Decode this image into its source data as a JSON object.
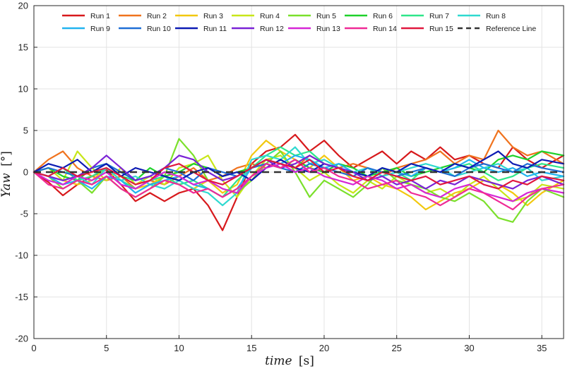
{
  "chart_data": {
    "type": "line",
    "title": "",
    "xlabel_main": "time",
    "xlabel_unit": "[s]",
    "ylabel_main": "Yaw",
    "ylabel_unit": "[°]",
    "xlim": [
      0,
      36.5
    ],
    "ylim": [
      -20,
      20
    ],
    "xticks": [
      0,
      5,
      10,
      15,
      20,
      25,
      30,
      35
    ],
    "yticks": [
      -20,
      -15,
      -10,
      -5,
      0,
      5,
      10,
      15,
      20
    ],
    "grid": true,
    "legend_position": "top",
    "reference_line": {
      "name": "Reference Line",
      "value": 0,
      "color": "#333333"
    },
    "series": [
      {
        "name": "Run 1",
        "color": "#d7191c",
        "x": [
          0,
          1,
          2,
          3,
          4,
          5,
          6,
          7,
          8,
          9,
          10,
          11,
          12,
          13,
          14,
          15,
          16,
          17,
          18,
          19,
          20,
          21,
          22,
          23,
          24,
          25,
          26,
          27,
          28,
          29,
          30,
          31,
          32,
          33,
          34,
          35,
          36.5
        ],
        "values": [
          0,
          -1.2,
          -2.8,
          -1.5,
          -0.5,
          0.3,
          -1.5,
          -3.5,
          -2.5,
          -3.5,
          -2.5,
          -2.0,
          -4.0,
          -7.0,
          -3.0,
          1.0,
          2.5,
          3.0,
          4.5,
          2.5,
          3.8,
          2.0,
          0.5,
          1.5,
          2.5,
          1.0,
          2.5,
          1.5,
          3.0,
          1.5,
          2.0,
          1.0,
          0.5,
          3.0,
          1.5,
          0.5,
          2.0
        ]
      },
      {
        "name": "Run 2",
        "color": "#f0731e",
        "x": [
          0,
          1,
          2,
          3,
          4,
          5,
          6,
          7,
          8,
          9,
          10,
          11,
          12,
          13,
          14,
          15,
          16,
          17,
          18,
          19,
          20,
          21,
          22,
          23,
          24,
          25,
          26,
          27,
          28,
          29,
          30,
          31,
          32,
          33,
          34,
          35,
          36.5
        ],
        "values": [
          0,
          1.5,
          2.5,
          0.5,
          -0.5,
          -1.0,
          -0.5,
          -2.0,
          -1.0,
          -1.5,
          -0.5,
          0.5,
          -1.0,
          -0.5,
          0.5,
          1.0,
          0.5,
          1.5,
          0.5,
          2.0,
          1.0,
          0.5,
          1.0,
          0.5,
          -0.5,
          0.5,
          1.0,
          1.5,
          2.5,
          1.0,
          2.0,
          1.5,
          5.0,
          3.0,
          2.0,
          2.5,
          1.0
        ]
      },
      {
        "name": "Run 3",
        "color": "#f2c80f",
        "x": [
          0,
          1,
          2,
          3,
          4,
          5,
          6,
          7,
          8,
          9,
          10,
          11,
          12,
          13,
          14,
          15,
          16,
          17,
          18,
          19,
          20,
          21,
          22,
          23,
          24,
          25,
          26,
          27,
          28,
          29,
          30,
          31,
          32,
          33,
          34,
          35,
          36.5
        ],
        "values": [
          0,
          -0.5,
          -1.0,
          -1.5,
          -1.0,
          0.5,
          -1.0,
          -2.0,
          -1.5,
          -0.5,
          -1.0,
          -2.0,
          -1.0,
          -2.5,
          -1.5,
          2.0,
          3.8,
          2.5,
          1.5,
          0.5,
          2.0,
          0.5,
          -1.0,
          -0.5,
          -1.5,
          -2.0,
          -3.0,
          -4.5,
          -3.5,
          -2.5,
          -2.0,
          -1.0,
          -1.5,
          -2.5,
          -4.0,
          -2.5,
          -1.0
        ]
      },
      {
        "name": "Run 4",
        "color": "#c8e619",
        "x": [
          0,
          1,
          2,
          3,
          4,
          5,
          6,
          7,
          8,
          9,
          10,
          11,
          12,
          13,
          14,
          15,
          16,
          17,
          18,
          19,
          20,
          21,
          22,
          23,
          24,
          25,
          26,
          27,
          28,
          29,
          30,
          31,
          32,
          33,
          34,
          35,
          36.5
        ],
        "values": [
          0,
          0.5,
          -1.0,
          2.5,
          0.5,
          -1.0,
          0.5,
          -1.5,
          -0.5,
          -1.5,
          0.5,
          1.0,
          2.0,
          -1.0,
          -3.0,
          -0.5,
          1.5,
          2.0,
          0.5,
          -1.0,
          0.0,
          -1.5,
          -2.5,
          -1.0,
          -2.0,
          -0.5,
          -1.5,
          -2.5,
          -2.0,
          -3.0,
          -1.5,
          -0.5,
          -2.0,
          -3.5,
          -3.0,
          -1.5,
          -2.0
        ]
      },
      {
        "name": "Run 5",
        "color": "#7be02b",
        "x": [
          0,
          1,
          2,
          3,
          4,
          5,
          6,
          7,
          8,
          9,
          10,
          11,
          12,
          13,
          14,
          15,
          16,
          17,
          18,
          19,
          20,
          21,
          22,
          23,
          24,
          25,
          26,
          27,
          28,
          29,
          30,
          31,
          32,
          33,
          34,
          35,
          36.5
        ],
        "values": [
          0,
          -0.5,
          -2.0,
          -1.0,
          -2.5,
          -0.5,
          -2.0,
          -3.0,
          -2.0,
          -0.5,
          4.0,
          2.0,
          -1.0,
          -2.0,
          -2.5,
          -1.0,
          1.0,
          2.5,
          0.0,
          -3.0,
          -1.0,
          -2.0,
          -3.0,
          -1.5,
          0.5,
          -1.0,
          -1.5,
          -2.0,
          -3.0,
          -3.5,
          -2.5,
          -3.5,
          -5.5,
          -6.0,
          -3.5,
          -2.0,
          -3.0
        ]
      },
      {
        "name": "Run 6",
        "color": "#1fd12b",
        "x": [
          0,
          1,
          2,
          3,
          4,
          5,
          6,
          7,
          8,
          9,
          10,
          11,
          12,
          13,
          14,
          15,
          16,
          17,
          18,
          19,
          20,
          21,
          22,
          23,
          24,
          25,
          26,
          27,
          28,
          29,
          30,
          31,
          32,
          33,
          34,
          35,
          36.5
        ],
        "values": [
          0,
          0.5,
          -0.5,
          -1.0,
          0.5,
          1.0,
          -0.5,
          -1.0,
          0.5,
          -0.5,
          0.0,
          1.0,
          0.5,
          -0.5,
          0.0,
          0.5,
          1.0,
          0.5,
          1.5,
          0.5,
          0.0,
          1.0,
          0.5,
          -0.5,
          0.0,
          0.5,
          -0.5,
          0.0,
          0.5,
          1.0,
          0.5,
          0.0,
          1.5,
          2.0,
          1.5,
          2.5,
          2.0
        ]
      },
      {
        "name": "Run 7",
        "color": "#2ee68a",
        "x": [
          0,
          1,
          2,
          3,
          4,
          5,
          6,
          7,
          8,
          9,
          10,
          11,
          12,
          13,
          14,
          15,
          16,
          17,
          18,
          19,
          20,
          21,
          22,
          23,
          24,
          25,
          26,
          27,
          28,
          29,
          30,
          31,
          32,
          33,
          34,
          35,
          36.5
        ],
        "values": [
          0,
          -0.5,
          0.5,
          -1.0,
          -0.5,
          0.5,
          -1.0,
          -2.0,
          -1.0,
          -0.5,
          -1.5,
          -1.0,
          -2.0,
          -3.0,
          -1.0,
          0.5,
          2.0,
          3.0,
          2.0,
          2.5,
          1.0,
          0.5,
          -0.5,
          0.5,
          -0.5,
          0.0,
          -1.0,
          0.5,
          0.0,
          0.5,
          1.0,
          0.0,
          -1.0,
          -0.5,
          0.5,
          1.0,
          0.5
        ]
      },
      {
        "name": "Run 8",
        "color": "#2fd9d0",
        "x": [
          0,
          1,
          2,
          3,
          4,
          5,
          6,
          7,
          8,
          9,
          10,
          11,
          12,
          13,
          14,
          15,
          16,
          17,
          18,
          19,
          20,
          21,
          22,
          23,
          24,
          25,
          26,
          27,
          28,
          29,
          30,
          31,
          32,
          33,
          34,
          35,
          36.5
        ],
        "values": [
          0,
          -0.5,
          -1.0,
          -0.5,
          -1.5,
          0.5,
          -1.0,
          -0.5,
          -1.5,
          -2.0,
          -1.0,
          -2.0,
          -2.5,
          -4.0,
          -2.5,
          1.5,
          2.0,
          1.5,
          3.0,
          1.0,
          1.5,
          0.5,
          0.0,
          0.5,
          -0.5,
          0.0,
          0.5,
          1.0,
          0.5,
          -0.5,
          0.0,
          0.5,
          1.0,
          0.0,
          0.5,
          -1.0,
          -0.5
        ]
      },
      {
        "name": "Run 9",
        "color": "#22b3f0",
        "x": [
          0,
          1,
          2,
          3,
          4,
          5,
          6,
          7,
          8,
          9,
          10,
          11,
          12,
          13,
          14,
          15,
          16,
          17,
          18,
          19,
          20,
          21,
          22,
          23,
          24,
          25,
          26,
          27,
          28,
          29,
          30,
          31,
          32,
          33,
          34,
          35,
          36.5
        ],
        "values": [
          0,
          -0.5,
          -1.5,
          -1.0,
          -2.0,
          -0.5,
          -1.0,
          -2.5,
          -1.5,
          -1.0,
          -0.5,
          -1.5,
          -2.0,
          -3.0,
          -2.0,
          0.5,
          1.5,
          1.0,
          2.0,
          1.5,
          0.5,
          1.0,
          0.0,
          -0.5,
          0.5,
          0.0,
          -0.5,
          0.5,
          0.0,
          0.5,
          1.5,
          0.5,
          0.0,
          0.5,
          -0.5,
          0.0,
          -0.5
        ]
      },
      {
        "name": "Run 10",
        "color": "#1f6fd6",
        "x": [
          0,
          1,
          2,
          3,
          4,
          5,
          6,
          7,
          8,
          9,
          10,
          11,
          12,
          13,
          14,
          15,
          16,
          17,
          18,
          19,
          20,
          21,
          22,
          23,
          24,
          25,
          26,
          27,
          28,
          29,
          30,
          31,
          32,
          33,
          34,
          35,
          36.5
        ],
        "values": [
          0,
          0.5,
          0.0,
          -0.5,
          0.5,
          1.0,
          0.0,
          -1.0,
          -0.5,
          0.5,
          0.0,
          -1.0,
          0.5,
          0.0,
          -0.5,
          0.5,
          1.0,
          0.5,
          0.0,
          1.0,
          0.5,
          0.0,
          -0.5,
          0.5,
          0.0,
          -0.5,
          0.0,
          0.5,
          0.0,
          -0.5,
          0.5,
          1.0,
          0.5,
          0.0,
          1.0,
          0.5,
          0.0
        ]
      },
      {
        "name": "Run 11",
        "color": "#0d1bb3",
        "x": [
          0,
          1,
          2,
          3,
          4,
          5,
          6,
          7,
          8,
          9,
          10,
          11,
          12,
          13,
          14,
          15,
          16,
          17,
          18,
          19,
          20,
          21,
          22,
          23,
          24,
          25,
          26,
          27,
          28,
          29,
          30,
          31,
          32,
          33,
          34,
          35,
          36.5
        ],
        "values": [
          0,
          1.0,
          0.5,
          1.5,
          0.0,
          1.0,
          -0.5,
          0.5,
          0.0,
          -0.5,
          -1.0,
          0.0,
          0.5,
          -0.5,
          0.0,
          -1.0,
          0.5,
          1.5,
          0.5,
          0.0,
          1.0,
          0.5,
          0.0,
          -0.5,
          0.5,
          0.0,
          1.0,
          0.5,
          0.0,
          1.0,
          0.5,
          1.5,
          2.5,
          1.0,
          0.5,
          1.5,
          1.0
        ]
      },
      {
        "name": "Run 12",
        "color": "#7a22d6",
        "x": [
          0,
          1,
          2,
          3,
          4,
          5,
          6,
          7,
          8,
          9,
          10,
          11,
          12,
          13,
          14,
          15,
          16,
          17,
          18,
          19,
          20,
          21,
          22,
          23,
          24,
          25,
          26,
          27,
          28,
          29,
          30,
          31,
          32,
          33,
          34,
          35,
          36.5
        ],
        "values": [
          0,
          -0.5,
          -1.0,
          -0.5,
          0.5,
          2.0,
          0.5,
          -1.0,
          -0.5,
          0.5,
          2.0,
          1.5,
          0.0,
          -1.0,
          -0.5,
          0.5,
          1.5,
          0.5,
          1.0,
          2.0,
          1.0,
          0.5,
          0.0,
          -1.0,
          -0.5,
          -1.5,
          -1.0,
          -2.0,
          -1.0,
          -1.5,
          -0.5,
          -1.0,
          -1.5,
          -2.0,
          -1.0,
          -0.5,
          -1.5
        ]
      },
      {
        "name": "Run 13",
        "color": "#d626d6",
        "x": [
          0,
          1,
          2,
          3,
          4,
          5,
          6,
          7,
          8,
          9,
          10,
          11,
          12,
          13,
          14,
          15,
          16,
          17,
          18,
          19,
          20,
          21,
          22,
          23,
          24,
          25,
          26,
          27,
          28,
          29,
          30,
          31,
          32,
          33,
          34,
          35,
          36.5
        ],
        "values": [
          0,
          -1.0,
          -1.5,
          -0.5,
          -1.0,
          0.0,
          -1.5,
          -2.0,
          -1.0,
          0.0,
          -0.5,
          -1.5,
          -1.0,
          -2.0,
          -2.5,
          -0.5,
          0.5,
          1.0,
          0.0,
          0.5,
          -0.5,
          -1.0,
          -1.5,
          -0.5,
          -1.0,
          -2.0,
          -1.5,
          -2.5,
          -3.0,
          -2.0,
          -1.5,
          -2.5,
          -3.0,
          -3.5,
          -2.5,
          -2.0,
          -2.5
        ]
      },
      {
        "name": "Run 14",
        "color": "#ef2a96",
        "x": [
          0,
          1,
          2,
          3,
          4,
          5,
          6,
          7,
          8,
          9,
          10,
          11,
          12,
          13,
          14,
          15,
          16,
          17,
          18,
          19,
          20,
          21,
          22,
          23,
          24,
          25,
          26,
          27,
          28,
          29,
          30,
          31,
          32,
          33,
          34,
          35,
          36.5
        ],
        "values": [
          0,
          -1.5,
          -2.0,
          -1.0,
          -1.5,
          -0.5,
          -2.0,
          -3.0,
          -2.0,
          -1.0,
          -1.5,
          -2.5,
          -2.0,
          -3.0,
          -2.0,
          -0.5,
          1.0,
          0.5,
          1.5,
          0.0,
          0.5,
          -0.5,
          -1.0,
          -2.0,
          -1.5,
          -1.0,
          -2.5,
          -3.0,
          -4.0,
          -3.0,
          -2.0,
          -2.5,
          -3.5,
          -4.5,
          -3.0,
          -2.0,
          -1.5
        ]
      },
      {
        "name": "Run 15",
        "color": "#e0183f",
        "x": [
          0,
          1,
          2,
          3,
          4,
          5,
          6,
          7,
          8,
          9,
          10,
          11,
          12,
          13,
          14,
          15,
          16,
          17,
          18,
          19,
          20,
          21,
          22,
          23,
          24,
          25,
          26,
          27,
          28,
          29,
          30,
          31,
          32,
          33,
          34,
          35,
          36.5
        ],
        "values": [
          0,
          -0.5,
          0.5,
          -0.5,
          0.0,
          0.5,
          -0.5,
          -1.5,
          -1.0,
          0.5,
          1.0,
          0.0,
          -1.0,
          -1.5,
          -0.5,
          0.5,
          1.5,
          1.0,
          0.5,
          1.5,
          0.0,
          0.5,
          -0.5,
          -1.0,
          0.0,
          -0.5,
          -1.0,
          -0.5,
          -1.5,
          -1.0,
          -0.5,
          -1.5,
          -2.0,
          -1.0,
          -1.5,
          -0.5,
          -1.0
        ]
      }
    ]
  }
}
